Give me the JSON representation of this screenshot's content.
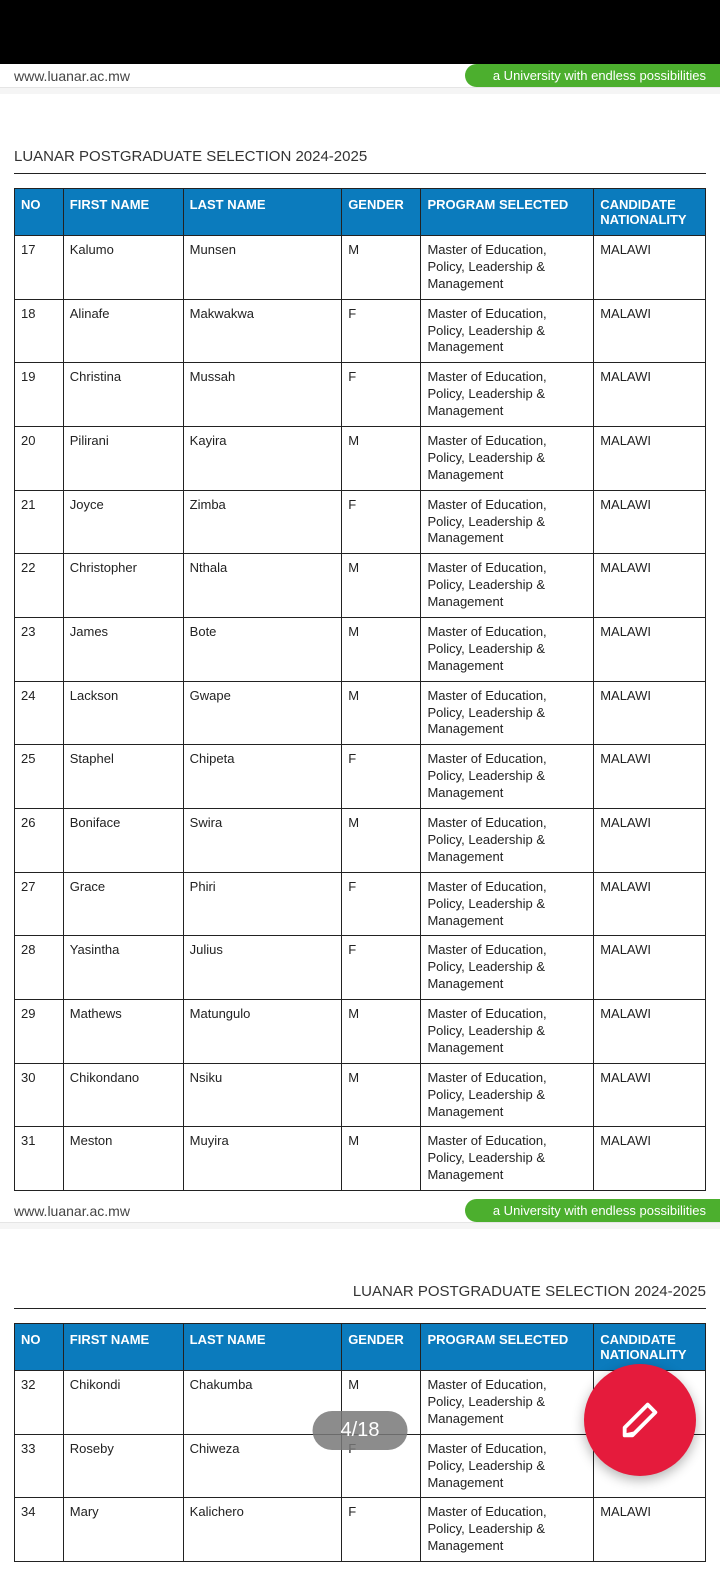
{
  "header": {
    "url": "www.luanar.ac.mw",
    "tagline": "a University with endless possibilities"
  },
  "doc": {
    "title": "LUANAR POSTGRADUATE SELECTION 2024-2025"
  },
  "columns": {
    "no": "NO",
    "first": "FIRST NAME",
    "last": "LAST NAME",
    "gender": "GENDER",
    "program": "PROGRAM SELECTED",
    "nat": "CANDIDATE NATIONALITY"
  },
  "program_common": "Master of Education, Policy, Leadership & Management",
  "nat_common": "MALAWI",
  "rows_page1": [
    {
      "no": "17",
      "first": "Kalumo",
      "last": "Munsen",
      "gender": "M"
    },
    {
      "no": "18",
      "first": "Alinafe",
      "last": "Makwakwa",
      "gender": "F"
    },
    {
      "no": "19",
      "first": "Christina",
      "last": "Mussah",
      "gender": "F"
    },
    {
      "no": "20",
      "first": "Pilirani",
      "last": "Kayira",
      "gender": "M"
    },
    {
      "no": "21",
      "first": "Joyce",
      "last": "Zimba",
      "gender": "F"
    },
    {
      "no": "22",
      "first": "Christopher",
      "last": "Nthala",
      "gender": "M"
    },
    {
      "no": "23",
      "first": "James",
      "last": "Bote",
      "gender": "M"
    },
    {
      "no": "24",
      "first": "Lackson",
      "last": "Gwape",
      "gender": "M"
    },
    {
      "no": "25",
      "first": "Staphel",
      "last": "Chipeta",
      "gender": "F"
    },
    {
      "no": "26",
      "first": "Boniface",
      "last": "Swira",
      "gender": "M"
    },
    {
      "no": "27",
      "first": "Grace",
      "last": "Phiri",
      "gender": "F"
    },
    {
      "no": "28",
      "first": "Yasintha",
      "last": "Julius",
      "gender": "F"
    },
    {
      "no": "29",
      "first": "Mathews",
      "last": "Matungulo",
      "gender": "M"
    },
    {
      "no": "30",
      "first": "Chikondano",
      "last": "Nsiku",
      "gender": "M"
    },
    {
      "no": "31",
      "first": "Meston",
      "last": "Muyira",
      "gender": "M"
    }
  ],
  "rows_page2": [
    {
      "no": "32",
      "first": "Chikondi",
      "last": "Chakumba",
      "gender": "M"
    },
    {
      "no": "33",
      "first": "Roseby",
      "last": "Chiweza",
      "gender": "F"
    },
    {
      "no": "34",
      "first": "Mary",
      "last": "Kalichero",
      "gender": "F"
    }
  ],
  "viewer": {
    "page_indicator": "4/18"
  },
  "colors": {
    "header_bg": "#0b7bbd",
    "tagline_bg": "#4caf2e",
    "fab_bg": "#e51b3c",
    "border": "#222222",
    "text": "#222222",
    "page_bg": "#ffffff",
    "body_bg": "#f5f5f5"
  }
}
